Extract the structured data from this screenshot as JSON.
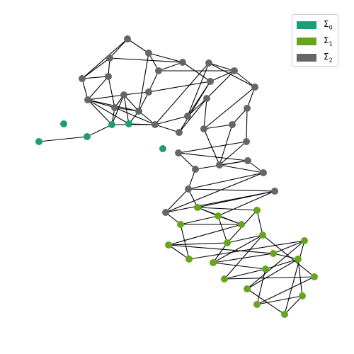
{
  "legend": [
    {
      "symbol": "Σ",
      "index": "0",
      "color": "#1b9e77"
    },
    {
      "symbol": "Σ",
      "index": "1",
      "color": "#66a61e"
    },
    {
      "symbol": "Σ",
      "index": "2",
      "color": "#666666"
    }
  ],
  "edge_color": "#000000",
  "nodes": [
    {
      "id": "n1",
      "group": 0
    },
    {
      "id": "n2",
      "group": 0
    },
    {
      "id": "n3",
      "group": 0
    },
    {
      "id": "n4",
      "group": 0
    },
    {
      "id": "n5",
      "group": 0
    },
    {
      "id": "n6",
      "group": 0
    },
    {
      "id": "g1",
      "group": 2
    },
    {
      "id": "g2",
      "group": 2
    },
    {
      "id": "g3",
      "group": 2
    },
    {
      "id": "g4",
      "group": 2
    },
    {
      "id": "g5",
      "group": 2
    },
    {
      "id": "g6",
      "group": 2
    },
    {
      "id": "g7",
      "group": 2
    },
    {
      "id": "g8",
      "group": 2
    },
    {
      "id": "g9",
      "group": 2
    },
    {
      "id": "g10",
      "group": 2
    },
    {
      "id": "g11",
      "group": 2
    },
    {
      "id": "g12",
      "group": 2
    },
    {
      "id": "g13",
      "group": 2
    },
    {
      "id": "g14",
      "group": 2
    },
    {
      "id": "g15",
      "group": 2
    },
    {
      "id": "g16",
      "group": 2
    },
    {
      "id": "g17",
      "group": 2
    },
    {
      "id": "g18",
      "group": 2
    },
    {
      "id": "g19",
      "group": 2
    },
    {
      "id": "g20",
      "group": 2
    },
    {
      "id": "g21",
      "group": 2
    },
    {
      "id": "g22",
      "group": 2
    },
    {
      "id": "g23",
      "group": 2
    },
    {
      "id": "g24",
      "group": 2
    },
    {
      "id": "g25",
      "group": 2
    },
    {
      "id": "g26",
      "group": 2
    },
    {
      "id": "g27",
      "group": 2
    },
    {
      "id": "g28",
      "group": 2
    },
    {
      "id": "g29",
      "group": 2
    },
    {
      "id": "g30",
      "group": 2
    },
    {
      "id": "g31",
      "group": 2
    },
    {
      "id": "g32",
      "group": 2
    },
    {
      "id": "l1",
      "group": 1
    },
    {
      "id": "l2",
      "group": 1
    },
    {
      "id": "l3",
      "group": 1
    },
    {
      "id": "l4",
      "group": 1
    },
    {
      "id": "l5",
      "group": 1
    },
    {
      "id": "l6",
      "group": 1
    },
    {
      "id": "l7",
      "group": 1
    },
    {
      "id": "l8",
      "group": 1
    },
    {
      "id": "l9",
      "group": 1
    },
    {
      "id": "l10",
      "group": 1
    },
    {
      "id": "l11",
      "group": 1
    },
    {
      "id": "l12",
      "group": 1
    },
    {
      "id": "l13",
      "group": 1
    },
    {
      "id": "l14",
      "group": 1
    },
    {
      "id": "l15",
      "group": 1
    },
    {
      "id": "l16",
      "group": 1
    },
    {
      "id": "l17",
      "group": 1
    },
    {
      "id": "l18",
      "group": 1
    },
    {
      "id": "l19",
      "group": 1
    },
    {
      "id": "l20",
      "group": 1
    }
  ],
  "edges": [
    [
      "n1",
      "n2"
    ],
    [
      "n2",
      "n3"
    ],
    [
      "n3",
      "g9"
    ],
    [
      "n3",
      "g13"
    ],
    [
      "n3",
      "g8"
    ],
    [
      "n3",
      "g10"
    ],
    [
      "n4",
      "g13"
    ],
    [
      "n4",
      "g8"
    ],
    [
      "n4",
      "g10"
    ],
    [
      "n4",
      "g12"
    ],
    [
      "g1",
      "g2"
    ],
    [
      "g1",
      "g3"
    ],
    [
      "g1",
      "g5"
    ],
    [
      "g2",
      "g4"
    ],
    [
      "g2",
      "g3"
    ],
    [
      "g2",
      "g6"
    ],
    [
      "g3",
      "g4"
    ],
    [
      "g3",
      "g8"
    ],
    [
      "g4",
      "g8"
    ],
    [
      "g4",
      "g9"
    ],
    [
      "g5",
      "g6"
    ],
    [
      "g5",
      "g7"
    ],
    [
      "g5",
      "g12"
    ],
    [
      "g6",
      "g7"
    ],
    [
      "g6",
      "g16"
    ],
    [
      "g7",
      "g11"
    ],
    [
      "g7",
      "g18"
    ],
    [
      "g8",
      "g9"
    ],
    [
      "g8",
      "g10"
    ],
    [
      "g8",
      "g12"
    ],
    [
      "g9",
      "g10"
    ],
    [
      "g9",
      "g12"
    ],
    [
      "g9",
      "g13"
    ],
    [
      "g10",
      "g11"
    ],
    [
      "g10",
      "g12"
    ],
    [
      "g11",
      "g12"
    ],
    [
      "g11",
      "g16"
    ],
    [
      "g12",
      "g13"
    ],
    [
      "g13",
      "g14"
    ],
    [
      "g13",
      "g15"
    ],
    [
      "g13",
      "g17"
    ],
    [
      "g14",
      "g15"
    ],
    [
      "g14",
      "g16"
    ],
    [
      "g14",
      "g19"
    ],
    [
      "g15",
      "g18"
    ],
    [
      "g15",
      "g20"
    ],
    [
      "g16",
      "g17"
    ],
    [
      "g16",
      "g18"
    ],
    [
      "g17",
      "g19"
    ],
    [
      "g18",
      "g19"
    ],
    [
      "g18",
      "g20"
    ],
    [
      "g19",
      "g22"
    ],
    [
      "g20",
      "g21"
    ],
    [
      "g20",
      "g22"
    ],
    [
      "g21",
      "g23"
    ],
    [
      "g21",
      "g24"
    ],
    [
      "g22",
      "g23"
    ],
    [
      "g22",
      "g26"
    ],
    [
      "g23",
      "g26"
    ],
    [
      "g24",
      "g25"
    ],
    [
      "g24",
      "g26"
    ],
    [
      "g25",
      "g27"
    ],
    [
      "g25",
      "g28"
    ],
    [
      "g26",
      "g28"
    ],
    [
      "g26",
      "g29"
    ],
    [
      "g27",
      "g28"
    ],
    [
      "g27",
      "g30"
    ],
    [
      "g28",
      "g29"
    ],
    [
      "g29",
      "g30"
    ],
    [
      "g29",
      "g31"
    ],
    [
      "g30",
      "g31"
    ],
    [
      "g30",
      "g32"
    ],
    [
      "g31",
      "g32"
    ],
    [
      "g31",
      "l4"
    ],
    [
      "g30",
      "l1"
    ],
    [
      "g32",
      "l1"
    ],
    [
      "g32",
      "l2"
    ],
    [
      "l1",
      "l2"
    ],
    [
      "l1",
      "l3"
    ],
    [
      "l1",
      "l5"
    ],
    [
      "l2",
      "l3"
    ],
    [
      "l2",
      "l4"
    ],
    [
      "l2",
      "l6"
    ],
    [
      "l3",
      "l4"
    ],
    [
      "l3",
      "l7"
    ],
    [
      "l4",
      "l8"
    ],
    [
      "l5",
      "l6"
    ],
    [
      "l5",
      "l9"
    ],
    [
      "l6",
      "l7"
    ],
    [
      "l6",
      "l9"
    ],
    [
      "l6",
      "l10"
    ],
    [
      "l7",
      "l8"
    ],
    [
      "l7",
      "l11"
    ],
    [
      "l8",
      "l12"
    ],
    [
      "l9",
      "l10"
    ],
    [
      "l9",
      "l13"
    ],
    [
      "l10",
      "l11"
    ],
    [
      "l10",
      "l14"
    ],
    [
      "l11",
      "l12"
    ],
    [
      "l11",
      "l15"
    ],
    [
      "l12",
      "l16"
    ],
    [
      "l13",
      "l14"
    ],
    [
      "l13",
      "l17"
    ],
    [
      "l14",
      "l15"
    ],
    [
      "l14",
      "l18"
    ],
    [
      "l15",
      "l16"
    ],
    [
      "l15",
      "l19"
    ],
    [
      "l16",
      "l20"
    ],
    [
      "l17",
      "l18"
    ],
    [
      "l18",
      "l19"
    ],
    [
      "l19",
      "l20"
    ],
    [
      "l17",
      "l9"
    ],
    [
      "l20",
      "l12"
    ]
  ]
}
